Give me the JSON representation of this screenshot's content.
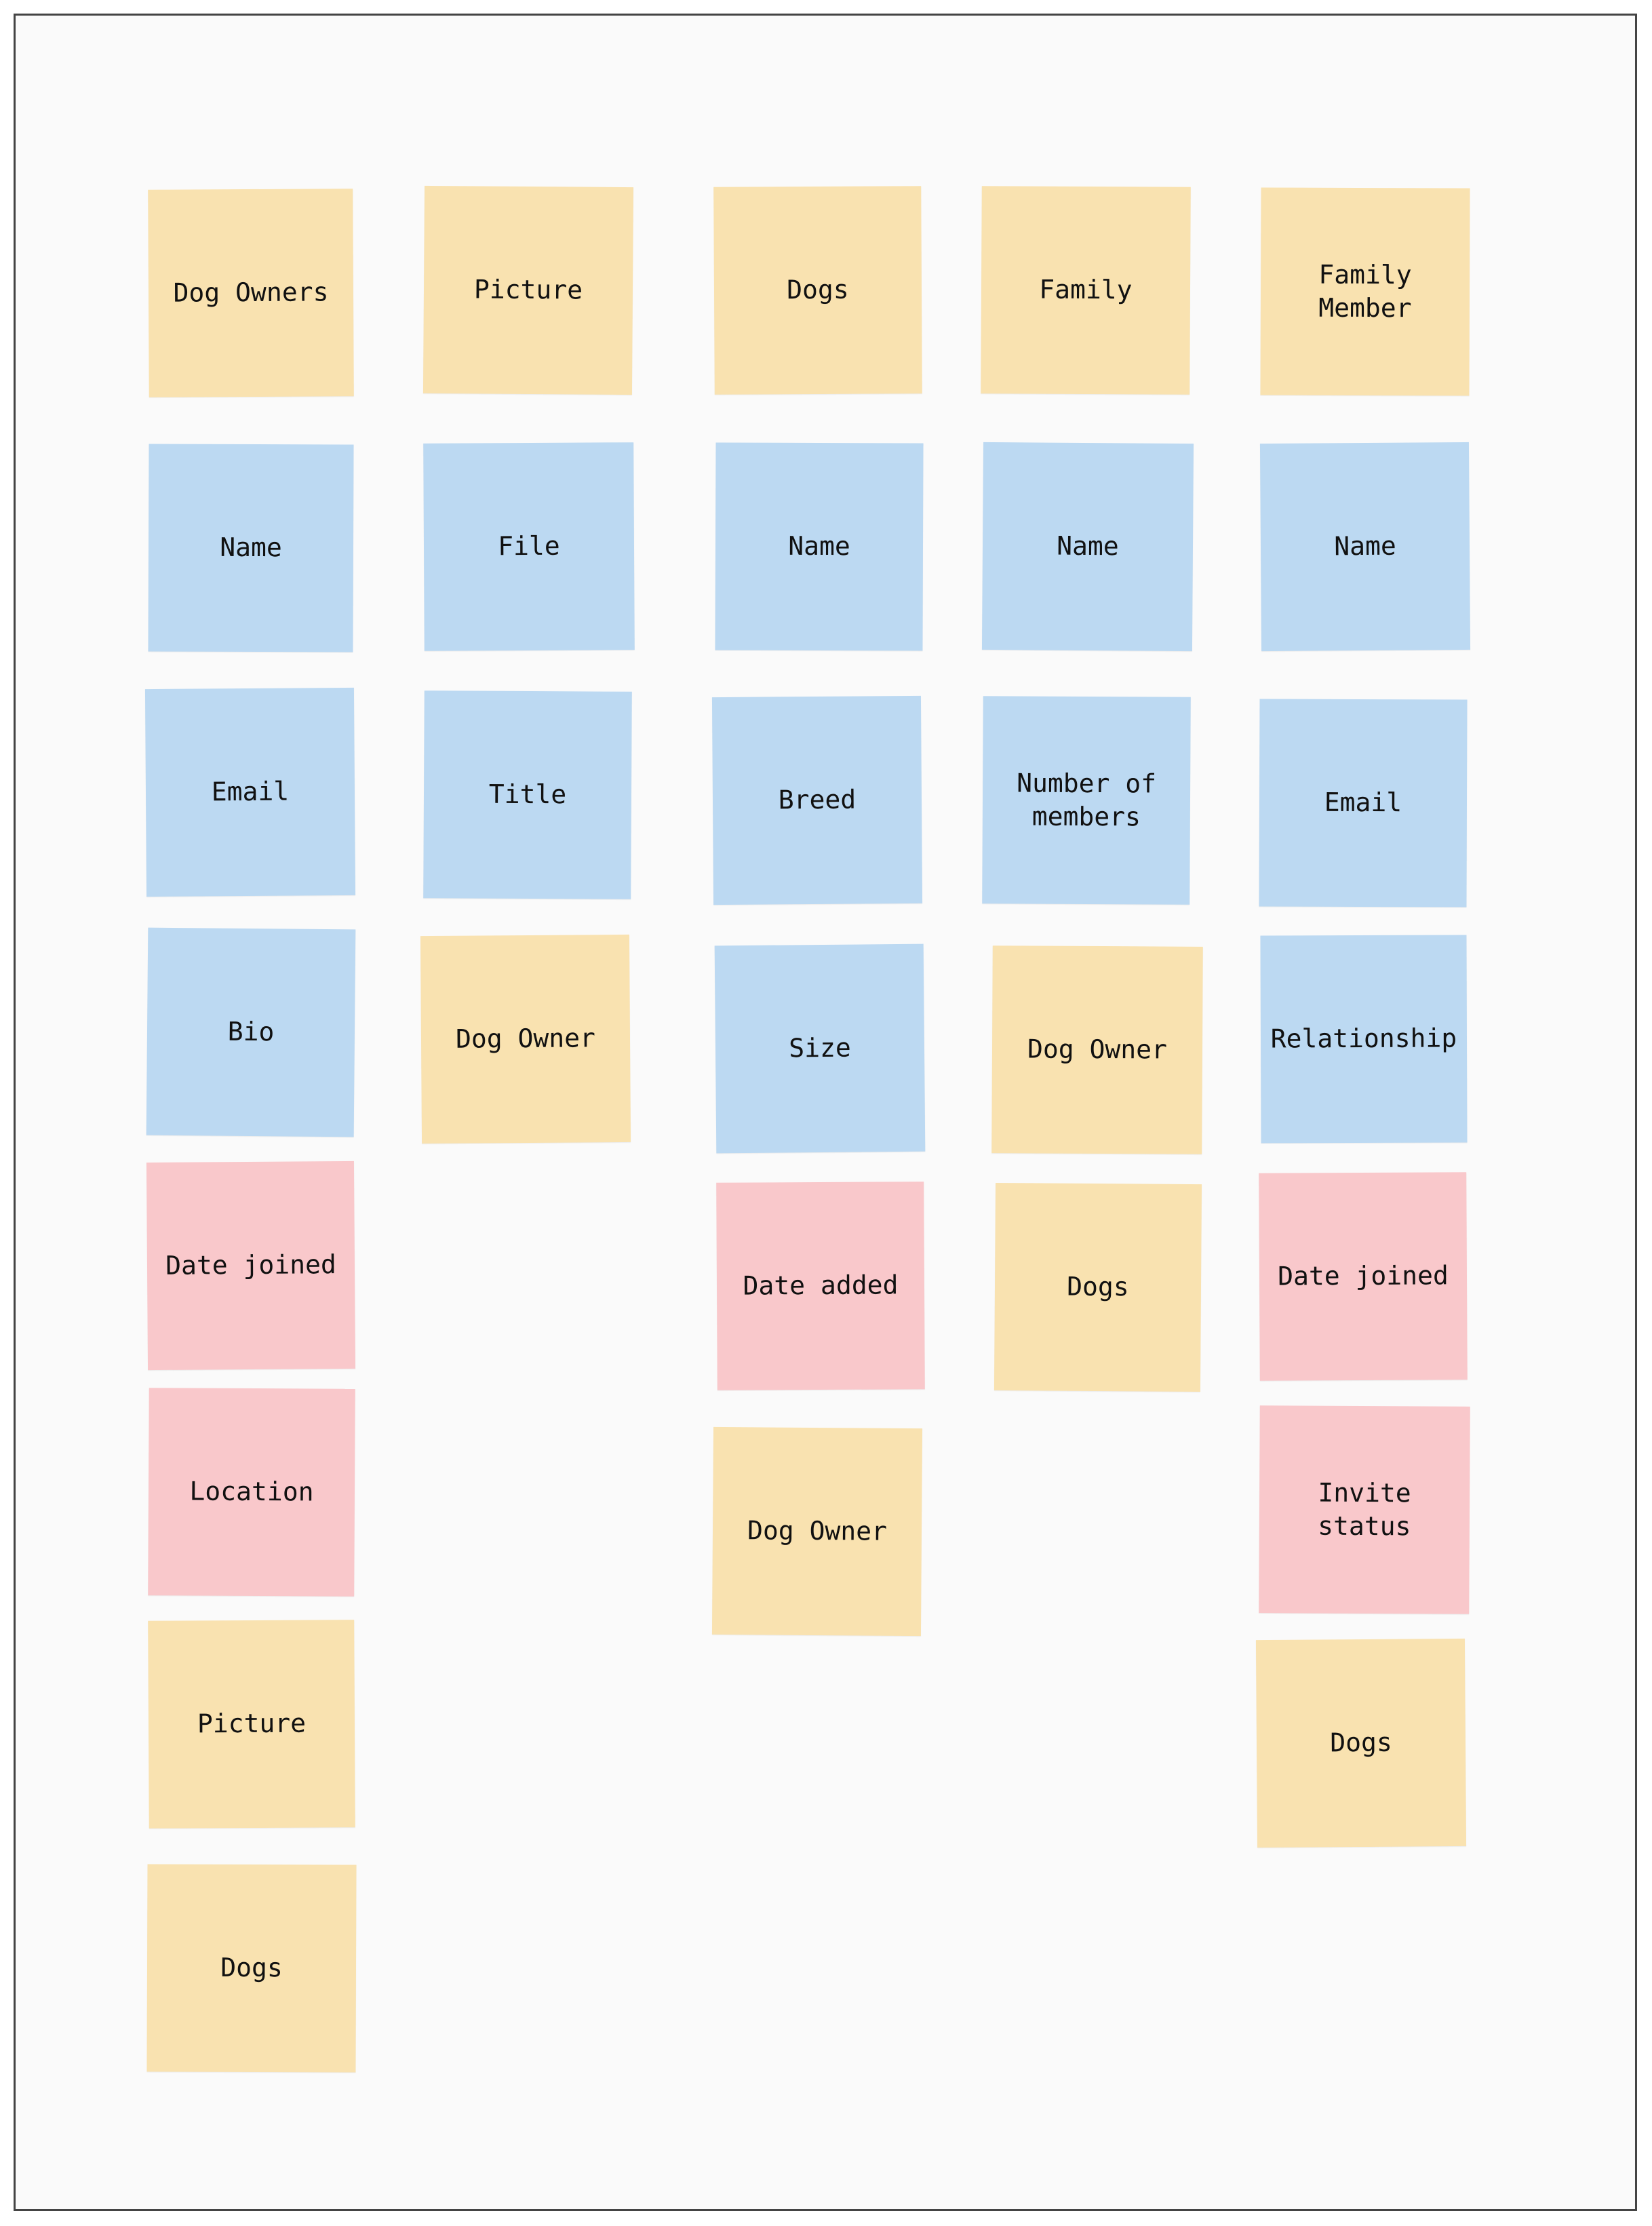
{
  "colors": {
    "board_bg": "#fafafa",
    "board_border": "#444444",
    "entity": "#f9e2b0",
    "field": "#bcd9f2",
    "meta": "#f9c8cb"
  },
  "columns": [
    {
      "notes": [
        {
          "text": "Dog Owners",
          "kind": "entity"
        },
        {
          "text": "Name",
          "kind": "field"
        },
        {
          "text": "Email",
          "kind": "field"
        },
        {
          "text": "Bio",
          "kind": "field"
        },
        {
          "text": "Date joined",
          "kind": "meta"
        },
        {
          "text": "Location",
          "kind": "meta"
        },
        {
          "text": "Picture",
          "kind": "entity"
        },
        {
          "text": "Dogs",
          "kind": "entity"
        }
      ]
    },
    {
      "notes": [
        {
          "text": "Picture",
          "kind": "entity"
        },
        {
          "text": "File",
          "kind": "field"
        },
        {
          "text": "Title",
          "kind": "field"
        },
        {
          "text": "Dog Owner",
          "kind": "entity"
        }
      ]
    },
    {
      "notes": [
        {
          "text": "Dogs",
          "kind": "entity"
        },
        {
          "text": "Name",
          "kind": "field"
        },
        {
          "text": "Breed",
          "kind": "field"
        },
        {
          "text": "Size",
          "kind": "field"
        },
        {
          "text": "Date added",
          "kind": "meta"
        },
        {
          "text": "Dog Owner",
          "kind": "entity"
        }
      ]
    },
    {
      "notes": [
        {
          "text": "Family",
          "kind": "entity"
        },
        {
          "text": "Name",
          "kind": "field"
        },
        {
          "text": "Number of\nmembers",
          "kind": "field"
        },
        {
          "text": "Dog Owner",
          "kind": "entity"
        },
        {
          "text": "Dogs",
          "kind": "entity"
        }
      ]
    },
    {
      "notes": [
        {
          "text": "Family\nMember",
          "kind": "entity"
        },
        {
          "text": "Name",
          "kind": "field"
        },
        {
          "text": "Email",
          "kind": "field"
        },
        {
          "text": "Relationship",
          "kind": "field"
        },
        {
          "text": "Date joined",
          "kind": "meta"
        },
        {
          "text": "Invite\nstatus",
          "kind": "meta"
        },
        {
          "text": "Dogs",
          "kind": "entity"
        }
      ]
    }
  ]
}
